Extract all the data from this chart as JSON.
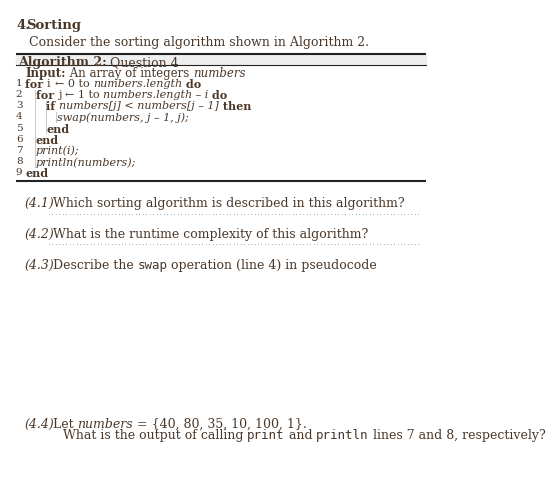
{
  "title_num": "4.",
  "title_text": "Sorting",
  "intro": "Consider the sorting algorithm shown in Algorithm 2.",
  "algo_title_bold": "Algorithm 2:",
  "algo_title_rest": " Question 4",
  "input_bold": "Input:",
  "input_normal": " An array of integers ",
  "input_italic": "numbers",
  "lines": [
    {
      "n": "1",
      "ind": 0,
      "segs": [
        [
          "for ",
          "b"
        ],
        [
          "i ",
          "n"
        ],
        [
          "← 0 to ",
          "n"
        ],
        [
          "numbers.length",
          "i"
        ],
        [
          " do",
          "b"
        ]
      ]
    },
    {
      "n": "2",
      "ind": 1,
      "segs": [
        [
          "for ",
          "b"
        ],
        [
          "j ",
          "n"
        ],
        [
          "← 1 to ",
          "n"
        ],
        [
          "numbers.length – i",
          "i"
        ],
        [
          " do",
          "b"
        ]
      ]
    },
    {
      "n": "3",
      "ind": 2,
      "segs": [
        [
          "if ",
          "b"
        ],
        [
          "numbers[j] < numbers[j – 1]",
          "i"
        ],
        [
          " then",
          "b"
        ]
      ]
    },
    {
      "n": "4",
      "ind": 3,
      "segs": [
        [
          "swap(numbers, j – 1, j);",
          "i"
        ]
      ]
    },
    {
      "n": "5",
      "ind": 2,
      "segs": [
        [
          "end",
          "b"
        ]
      ]
    },
    {
      "n": "6",
      "ind": 1,
      "segs": [
        [
          "end",
          "b"
        ]
      ]
    },
    {
      "n": "7",
      "ind": 1,
      "segs": [
        [
          "print(i);",
          "i"
        ]
      ]
    },
    {
      "n": "8",
      "ind": 1,
      "segs": [
        [
          "println(numbers);",
          "i"
        ]
      ]
    },
    {
      "n": "9",
      "ind": 0,
      "segs": [
        [
          "end",
          "b"
        ]
      ]
    }
  ],
  "q41_num": "(4.1)",
  "q41_text": "Which sorting algorithm is described in this algorithm?",
  "q42_num": "(4.2)",
  "q42_text": "What is the runtime complexity of this algorithm?",
  "q43_num": "(4.3)",
  "q43_pre": "Describe the ",
  "q43_mono": "swap",
  "q43_post": " operation (line 4) in pseudocode",
  "q44_num": "(4.4)",
  "q44_pre": "Let ",
  "q44_italic": "numbers",
  "q44_post": " = {40, 80, 35, 10, 100, 1}.",
  "q44_line2_pre": "What is the output of calling ",
  "q44_mono1": "print",
  "q44_line2_mid": " and ",
  "q44_mono2": "println",
  "q44_line2_post": " lines 7 and 8, respectively?",
  "text_color": "#4a3728",
  "dot_color": "#8aacbe",
  "line_color": "#222222",
  "bg_color": "#ffffff",
  "fs_title": 9.5,
  "fs_body": 8.5,
  "fs_algo": 8.0,
  "fs_linenum": 7.5
}
